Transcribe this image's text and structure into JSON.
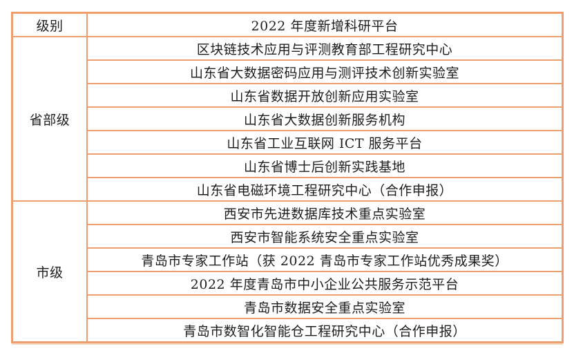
{
  "table": {
    "header": {
      "level_label": "级别",
      "title": "2022 年度新增科研平台"
    },
    "groups": [
      {
        "level": "省部级",
        "items": [
          "区块链技术应用与评测教育部工程研究中心",
          "山东省大数据密码应用与测评技术创新实验室",
          "山东省数据开放创新应用实验室",
          "山东省大数据创新服务机构",
          "山东省工业互联网 ICT 服务平台",
          "山东省博士后创新实践基地",
          "山东省电磁环境工程研究中心（合作申报）"
        ]
      },
      {
        "level": "市级",
        "items": [
          "西安市先进数据库技术重点实验室",
          "西安市智能系统安全重点实验室",
          "青岛市专家工作站（获 2022 青岛市专家工作站优秀成果奖）",
          "2022 年度青岛市中小企业公共服务示范平台",
          "青岛市数据安全重点实验室",
          "青岛市数智化智能仓工程研究中心（合作申报）"
        ]
      }
    ]
  },
  "colors": {
    "border_orange": "#ef9f6e",
    "row_peach": "#fbdfc8",
    "row_white": "#ffffff",
    "text": "#1d1d1d"
  }
}
